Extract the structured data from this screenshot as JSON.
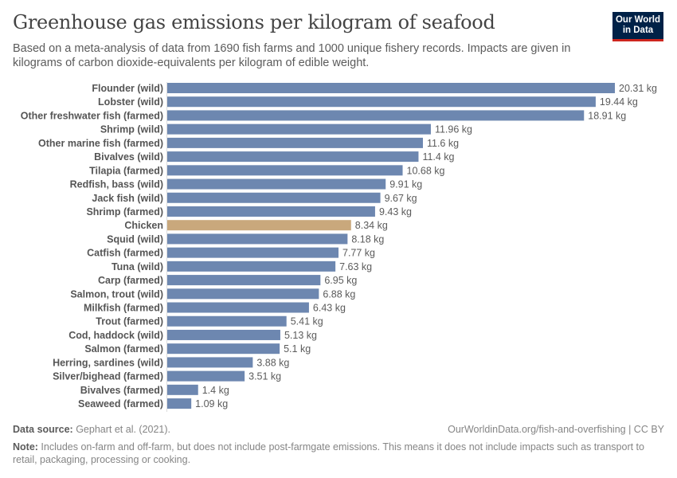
{
  "header": {
    "title": "Greenhouse gas emissions per kilogram of seafood",
    "subtitle": "Based on a meta-analysis of data from 1690 fish farms and 1000 unique fishery records. Impacts are given in kilograms of carbon dioxide-equivalents per kilogram of edible weight.",
    "logo_line1": "Our World",
    "logo_line2": "in Data"
  },
  "footer": {
    "source_label": "Data source:",
    "source_text": " Gephart et al. (2021).",
    "url": "OurWorldinData.org/fish-and-overfishing | CC BY",
    "note_label": "Note:",
    "note_text": " Includes on-farm and off-farm, but does not include post-farmgate emissions. This means it does not include impacts such as transport to retail, packaging, processing or cooking."
  },
  "colors": {
    "bar": "#6d87b0",
    "highlight": "#c9a87c"
  },
  "chart_data": {
    "type": "bar",
    "orientation": "horizontal",
    "title": "Greenhouse gas emissions per kilogram of seafood",
    "xlabel": "",
    "ylabel": "",
    "unit": "kg",
    "xlim": [
      0,
      20.31
    ],
    "grid": false,
    "highlighted": [
      "Chicken"
    ],
    "categories": [
      "Flounder (wild)",
      "Lobster (wild)",
      "Other freshwater fish (farmed)",
      "Shrimp (wild)",
      "Other marine fish (farmed)",
      "Bivalves (wild)",
      "Tilapia (farmed)",
      "Redfish, bass (wild)",
      "Jack fish (wild)",
      "Shrimp (farmed)",
      "Chicken",
      "Squid (wild)",
      "Catfish (farmed)",
      "Tuna (wild)",
      "Carp (farmed)",
      "Salmon, trout (wild)",
      "Milkfish (farmed)",
      "Trout (farmed)",
      "Cod, haddock (wild)",
      "Salmon (farmed)",
      "Herring, sardines (wild)",
      "Silver/bighead (farmed)",
      "Bivalves (farmed)",
      "Seaweed (farmed)"
    ],
    "values": [
      20.31,
      19.44,
      18.91,
      11.96,
      11.6,
      11.4,
      10.68,
      9.91,
      9.67,
      9.43,
      8.34,
      8.18,
      7.77,
      7.63,
      6.95,
      6.88,
      6.43,
      5.41,
      5.13,
      5.1,
      3.88,
      3.51,
      1.4,
      1.09
    ],
    "value_labels": [
      "20.31 kg",
      "19.44 kg",
      "18.91 kg",
      "11.96 kg",
      "11.6 kg",
      "11.4 kg",
      "10.68 kg",
      "9.91 kg",
      "9.67 kg",
      "9.43 kg",
      "8.34 kg",
      "8.18 kg",
      "7.77 kg",
      "7.63 kg",
      "6.95 kg",
      "6.88 kg",
      "6.43 kg",
      "5.41 kg",
      "5.13 kg",
      "5.1 kg",
      "3.88 kg",
      "3.51 kg",
      "1.4 kg",
      "1.09 kg"
    ]
  }
}
